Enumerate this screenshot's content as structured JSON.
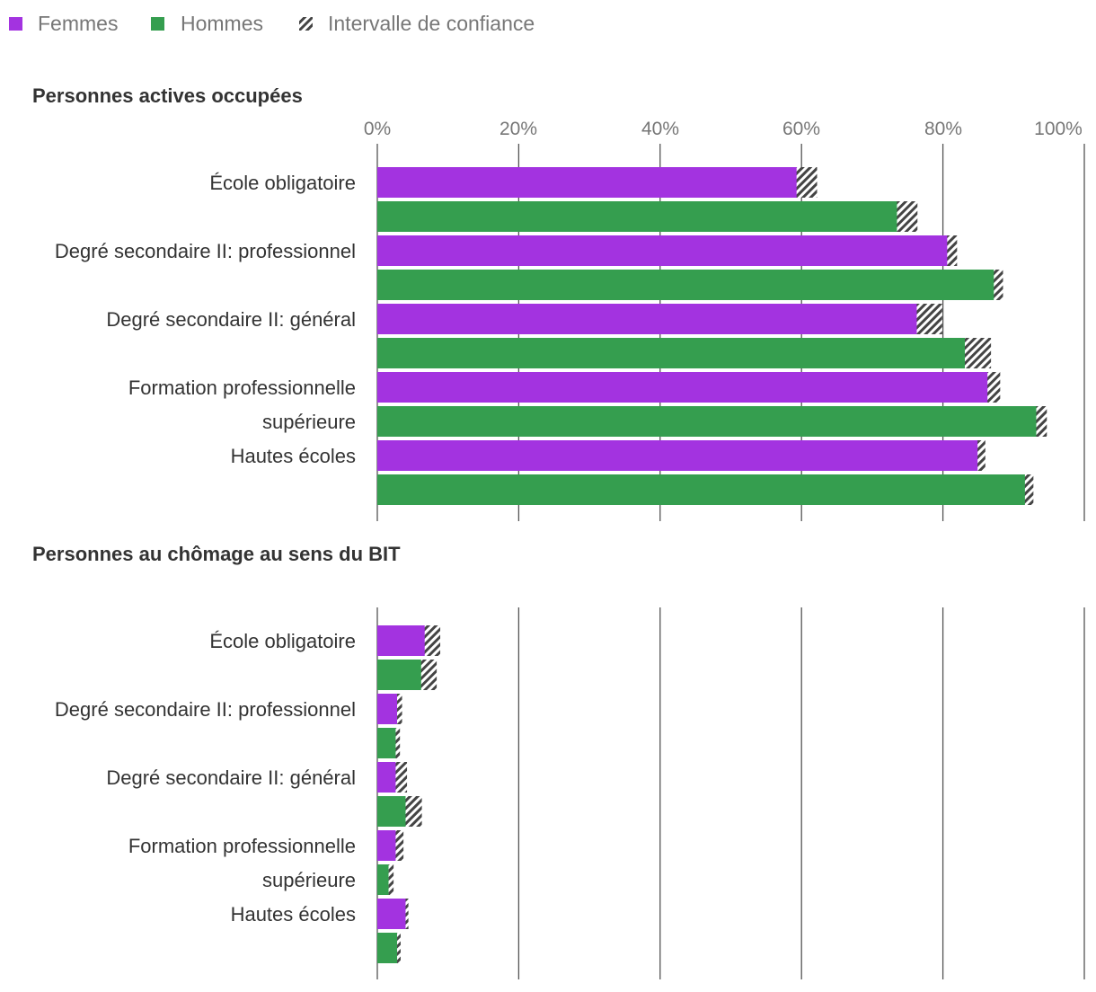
{
  "colors": {
    "femmes": "#a333e0",
    "hommes": "#359e4f",
    "ci": "#444444"
  },
  "legend": [
    {
      "key": "femmes",
      "label": "Femmes",
      "icon": "square-swatch"
    },
    {
      "key": "hommes",
      "label": "Hommes",
      "icon": "square-swatch"
    },
    {
      "key": "ci",
      "label": "Intervalle de confiance",
      "icon": "hatched-swatch"
    }
  ],
  "x_ticks": [
    "0%",
    "20%",
    "40%",
    "60%",
    "80%",
    "100%"
  ],
  "chart_data": [
    {
      "type": "bar",
      "orientation": "horizontal",
      "title": "Personnes actives occupées",
      "xlim": [
        0,
        100
      ],
      "grid": true,
      "categories": [
        "École obligatoire",
        "Degré secondaire II: professionnel",
        "Degré secondaire II: général",
        "Formation professionnelle supérieure",
        "Hautes écoles"
      ],
      "series": [
        {
          "name": "Femmes",
          "values": [
            59.7,
            80.9,
            76.7,
            86.7,
            85.3
          ],
          "ci": [
            [
              59.3,
              62.2
            ],
            [
              80.6,
              82.0
            ],
            [
              76.3,
              79.9
            ],
            [
              86.3,
              88.1
            ],
            [
              84.9,
              86.0
            ]
          ]
        },
        {
          "name": "Hommes",
          "values": [
            73.9,
            87.6,
            83.4,
            93.6,
            92.0
          ],
          "ci": [
            [
              73.5,
              76.4
            ],
            [
              87.2,
              88.5
            ],
            [
              83.1,
              86.8
            ],
            [
              93.2,
              94.7
            ],
            [
              91.6,
              92.8
            ]
          ]
        }
      ]
    },
    {
      "type": "bar",
      "orientation": "horizontal",
      "title": "Personnes au chômage au sens du BIT",
      "xlim": [
        0,
        100
      ],
      "grid": true,
      "categories": [
        "École obligatoire",
        "Degré secondaire II: professionnel",
        "Degré secondaire II: général",
        "Formation professionnelle supérieure",
        "Hautes écoles"
      ],
      "series": [
        {
          "name": "Femmes",
          "values": [
            6.9,
            2.8,
            2.6,
            2.6,
            4.0
          ],
          "ci": [
            [
              6.7,
              8.9
            ],
            [
              2.8,
              3.5
            ],
            [
              2.6,
              4.2
            ],
            [
              2.6,
              3.7
            ],
            [
              4.0,
              4.4
            ]
          ]
        },
        {
          "name": "Hommes",
          "values": [
            6.4,
            2.6,
            4.1,
            1.6,
            2.8
          ],
          "ci": [
            [
              6.2,
              8.4
            ],
            [
              2.6,
              3.2
            ],
            [
              4.0,
              6.3
            ],
            [
              1.6,
              2.3
            ],
            [
              2.8,
              3.3
            ]
          ]
        }
      ]
    }
  ]
}
